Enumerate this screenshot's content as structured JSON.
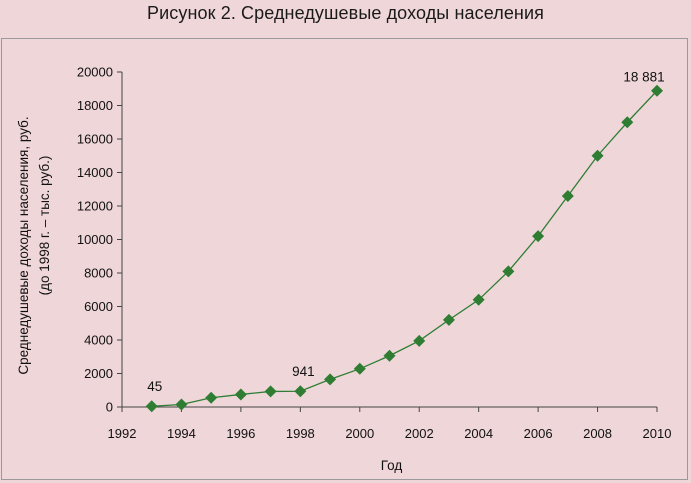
{
  "title": "Рисунок 2. Среднедушевые доходы населения",
  "chart_data": {
    "type": "line",
    "x": [
      1993,
      1994,
      1995,
      1996,
      1997,
      1998,
      1999,
      2000,
      2001,
      2002,
      2003,
      2004,
      2005,
      2006,
      2007,
      2008,
      2009,
      2010
    ],
    "series": [
      {
        "values": [
          45,
          150,
          550,
          750,
          930,
          941,
          1650,
          2280,
          3060,
          3950,
          5200,
          6400,
          8100,
          10200,
          12600,
          15000,
          17000,
          18881
        ],
        "color": "#2e7d32",
        "marker": "diamond"
      }
    ],
    "xlabel": "Год",
    "ylabel_lines": [
      "Среднедушевые доходы населения, руб.",
      "(до 1998 г. – тыс. руб.)"
    ],
    "xlim": [
      1992,
      2010
    ],
    "ylim": [
      0,
      20000
    ],
    "xticks": [
      "1992",
      "1994",
      "1996",
      "1998",
      "2000",
      "2002",
      "2004",
      "2006",
      "2008",
      "2010"
    ],
    "yticks": [
      "0",
      "2000",
      "4000",
      "6000",
      "8000",
      "10000",
      "12000",
      "14000",
      "16000",
      "18000",
      "20000"
    ],
    "data_labels": [
      {
        "x": 1993,
        "y": 45,
        "text": "45"
      },
      {
        "x": 1998,
        "y": 941,
        "text": "941"
      },
      {
        "x": 2010,
        "y": 18881,
        "text": "18 881"
      }
    ],
    "grid": false,
    "legend": "none"
  }
}
